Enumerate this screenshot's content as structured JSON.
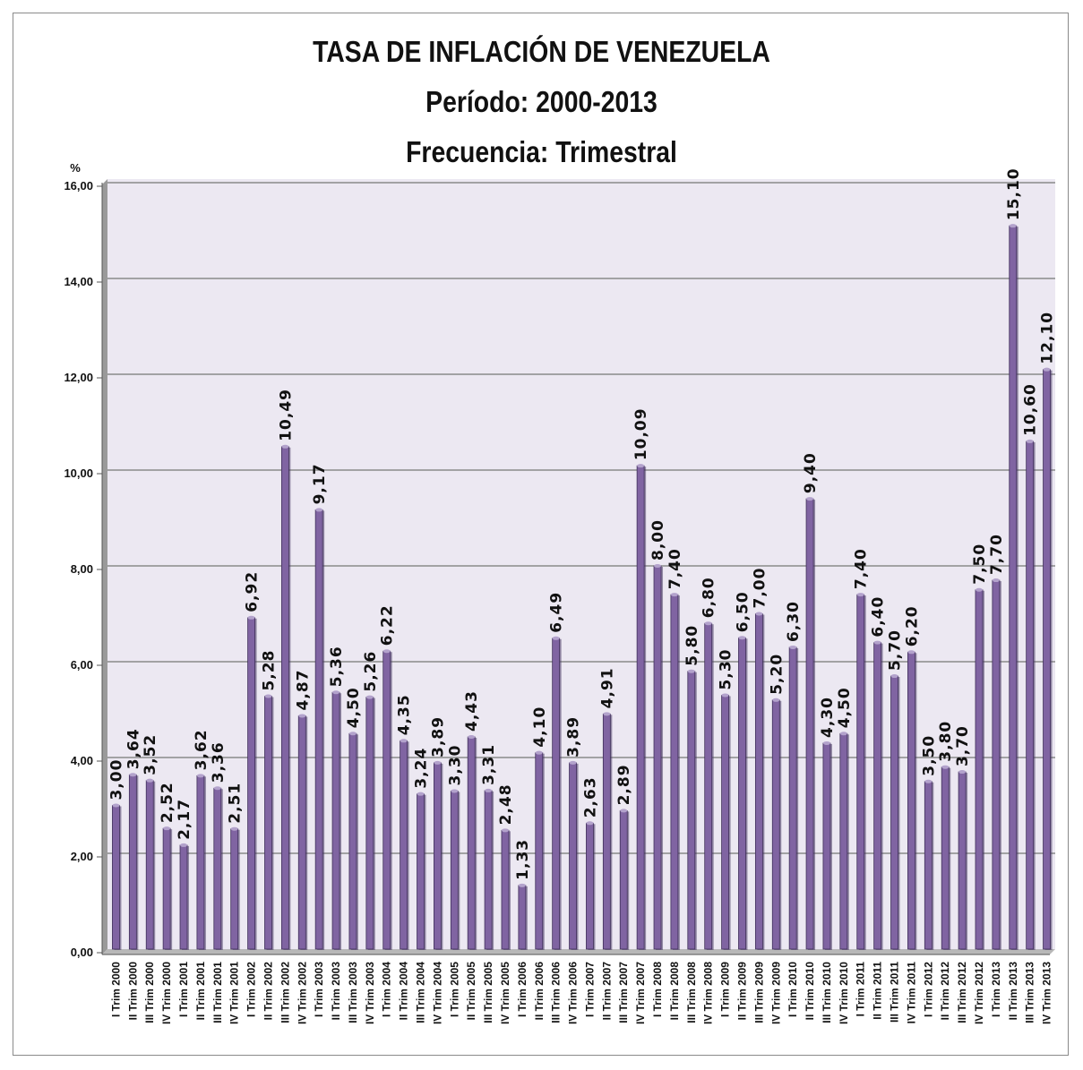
{
  "chart_data": {
    "type": "bar",
    "title_lines": [
      "TASA DE INFLACIÓN DE VENEZUELA",
      "Período: 2000-2013",
      "Frecuencia: Trimestral"
    ],
    "ylabel": "%",
    "ylim": [
      0,
      16
    ],
    "yticks": [
      "0,00",
      "2,00",
      "4,00",
      "6,00",
      "8,00",
      "10,00",
      "12,00",
      "14,00",
      "16,00"
    ],
    "grid": true,
    "bar_color": "#8064a2",
    "plot_bg": "#ece8f2",
    "categories": [
      "I Trim 2000",
      "II Trim 2000",
      "III Trim 2000",
      "IV Trim 2000",
      "I Trim 2001",
      "II Trim 2001",
      "III Trim 2001",
      "IV Trim 2001",
      "I Trim 2002",
      "II Trim 2002",
      "III Trim 2002",
      "IV Trim 2002",
      "I Trim 2003",
      "II Trim 2003",
      "III Trim 2003",
      "IV Trim 2003",
      "I Trim 2004",
      "II Trim 2004",
      "III Trim 2004",
      "IV Trim 2004",
      "I Trim 2005",
      "II Trim 2005",
      "III Trim 2005",
      "IV Trim 2005",
      "I Trim 2006",
      "II Trim 2006",
      "III Trim 2006",
      "IV Trim 2006",
      "I Trim 2007",
      "II Trim 2007",
      "III Trim 2007",
      "IV Trim 2007",
      "I Trim 2008",
      "II Trim 2008",
      "III Trim 2008",
      "IV Trim 2008",
      "I Trim 2009",
      "II Trim 2009",
      "III Trim 2009",
      "IV Trim 2009",
      "I Trim 2010",
      "II Trim 2010",
      "III Trim 2010",
      "IV Trim 2010",
      "I Trim 2011",
      "II Trim 2011",
      "III Trim 2011",
      "IV Trim 2011",
      "I Trim 2012",
      "II Trim 2012",
      "III Trim 2012",
      "IV Trim 2012",
      "I Trim 2013",
      "II Trim 2013",
      "III Trim 2013",
      "IV Trim 2013"
    ],
    "values": [
      3.0,
      3.64,
      3.52,
      2.52,
      2.17,
      3.62,
      3.36,
      2.51,
      6.92,
      5.28,
      10.49,
      4.87,
      9.17,
      5.36,
      4.5,
      5.26,
      6.22,
      4.35,
      3.24,
      3.89,
      3.3,
      4.43,
      3.31,
      2.48,
      1.33,
      4.1,
      6.49,
      3.89,
      2.63,
      4.91,
      2.89,
      10.09,
      8.0,
      7.4,
      5.8,
      6.8,
      5.3,
      6.5,
      7.0,
      5.2,
      6.3,
      9.4,
      4.3,
      4.5,
      7.4,
      6.4,
      5.7,
      6.2,
      3.5,
      3.8,
      3.7,
      7.5,
      7.7,
      15.1,
      10.6,
      12.1
    ],
    "value_labels": [
      "3,00",
      "3,64",
      "3,52",
      "2,52",
      "2,17",
      "3,62",
      "3,36",
      "2,51",
      "6,92",
      "5,28",
      "10,49",
      "4,87",
      "9,17",
      "5,36",
      "4,50",
      "5,26",
      "6,22",
      "4,35",
      "3,24",
      "3,89",
      "3,30",
      "4,43",
      "3,31",
      "2,48",
      "1,33",
      "4,10",
      "6,49",
      "3,89",
      "2,63",
      "4,91",
      "2,89",
      "10,09",
      "8,00",
      "7,40",
      "5,80",
      "6,80",
      "5,30",
      "6,50",
      "7,00",
      "5,20",
      "6,30",
      "9,40",
      "4,30",
      "4,50",
      "7,40",
      "6,40",
      "5,70",
      "6,20",
      "3,50",
      "3,80",
      "3,70",
      "7,50",
      "7,70",
      "15,10",
      "10,60",
      "12,10"
    ]
  }
}
